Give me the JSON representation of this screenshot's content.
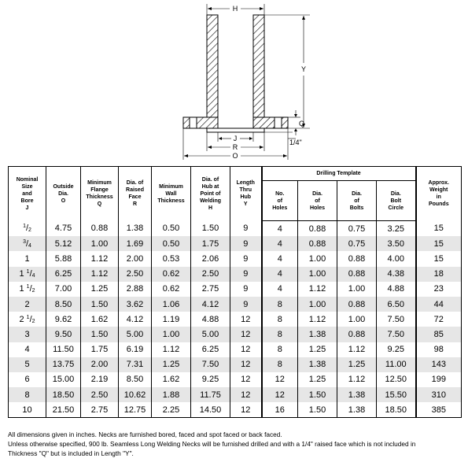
{
  "drawing": {
    "labels": {
      "h": "H",
      "y": "Y",
      "q": "Q",
      "quarter": "1/4\"",
      "j": "J",
      "r": "R",
      "o": "O"
    }
  },
  "table": {
    "drilling_title": "Drilling Template",
    "headers": [
      [
        "Nominal",
        "Size",
        "and",
        "Bore",
        "J"
      ],
      [
        "Outside",
        "Dia.",
        "O"
      ],
      [
        "Minimum",
        "Flange",
        "Thickness",
        "Q"
      ],
      [
        "Dia. of",
        "Raised",
        "Face",
        "R"
      ],
      [
        "Minimum",
        "Wall",
        "Thickness"
      ],
      [
        "Dia. of",
        "Hub at",
        "Point of",
        "Welding",
        "H"
      ],
      [
        "Length",
        "Thru",
        "Hub",
        "Y"
      ],
      [
        "No.",
        "of",
        "Holes"
      ],
      [
        "Dia.",
        "of",
        "Holes"
      ],
      [
        "Dia.",
        "of",
        "Bolts"
      ],
      [
        "Dia.",
        "Bolt",
        "Circle"
      ],
      [
        "Approx.",
        "Weight",
        "in",
        "Pounds"
      ]
    ],
    "rows": [
      {
        "size_whole": "",
        "size_num": "1",
        "size_den": "2",
        "cells": [
          "4.75",
          "0.88",
          "1.38",
          "0.50",
          "1.50",
          "9",
          "4",
          "0.88",
          "0.75",
          "3.25",
          "15"
        ]
      },
      {
        "size_whole": "",
        "size_num": "3",
        "size_den": "4",
        "cells": [
          "5.12",
          "1.00",
          "1.69",
          "0.50",
          "1.75",
          "9",
          "4",
          "0.88",
          "0.75",
          "3.50",
          "15"
        ]
      },
      {
        "size_whole": "1",
        "size_num": "",
        "size_den": "",
        "cells": [
          "5.88",
          "1.12",
          "2.00",
          "0.53",
          "2.06",
          "9",
          "4",
          "1.00",
          "0.88",
          "4.00",
          "15"
        ]
      },
      {
        "size_whole": "1",
        "size_num": "1",
        "size_den": "4",
        "cells": [
          "6.25",
          "1.12",
          "2.50",
          "0.62",
          "2.50",
          "9",
          "4",
          "1.00",
          "0.88",
          "4.38",
          "18"
        ]
      },
      {
        "size_whole": "1",
        "size_num": "1",
        "size_den": "2",
        "cells": [
          "7.00",
          "1.25",
          "2.88",
          "0.62",
          "2.75",
          "9",
          "4",
          "1.12",
          "1.00",
          "4.88",
          "23"
        ]
      },
      {
        "size_whole": "2",
        "size_num": "",
        "size_den": "",
        "cells": [
          "8.50",
          "1.50",
          "3.62",
          "1.06",
          "4.12",
          "9",
          "8",
          "1.00",
          "0.88",
          "6.50",
          "44"
        ]
      },
      {
        "size_whole": "2",
        "size_num": "1",
        "size_den": "2",
        "cells": [
          "9.62",
          "1.62",
          "4.12",
          "1.19",
          "4.88",
          "12",
          "8",
          "1.12",
          "1.00",
          "7.50",
          "72"
        ]
      },
      {
        "size_whole": "3",
        "size_num": "",
        "size_den": "",
        "cells": [
          "9.50",
          "1.50",
          "5.00",
          "1.00",
          "5.00",
          "12",
          "8",
          "1.38",
          "0.88",
          "7.50",
          "85"
        ]
      },
      {
        "size_whole": "4",
        "size_num": "",
        "size_den": "",
        "cells": [
          "11.50",
          "1.75",
          "6.19",
          "1.12",
          "6.25",
          "12",
          "8",
          "1.25",
          "1.12",
          "9.25",
          "98"
        ]
      },
      {
        "size_whole": "5",
        "size_num": "",
        "size_den": "",
        "cells": [
          "13.75",
          "2.00",
          "7.31",
          "1.25",
          "7.50",
          "12",
          "8",
          "1.38",
          "1.25",
          "11.00",
          "143"
        ]
      },
      {
        "size_whole": "6",
        "size_num": "",
        "size_den": "",
        "cells": [
          "15.00",
          "2.19",
          "8.50",
          "1.62",
          "9.25",
          "12",
          "12",
          "1.25",
          "1.12",
          "12.50",
          "199"
        ]
      },
      {
        "size_whole": "8",
        "size_num": "",
        "size_den": "",
        "cells": [
          "18.50",
          "2.50",
          "10.62",
          "1.88",
          "11.75",
          "12",
          "12",
          "1.50",
          "1.38",
          "15.50",
          "310"
        ]
      },
      {
        "size_whole": "10",
        "size_num": "",
        "size_den": "",
        "cells": [
          "21.50",
          "2.75",
          "12.75",
          "2.25",
          "14.50",
          "12",
          "16",
          "1.50",
          "1.38",
          "18.50",
          "385"
        ]
      }
    ]
  },
  "notes": [
    "All dimensions given in inches. Necks are furnished bored, faced and spot faced or back faced.",
    "Unless otherwise specified, 900 lb. Seamless Long Welding Necks will be furnished drilled and with a 1/4\" raised face which is not included in",
    "Thickness \"Q\" but is included in Length \"Y\"."
  ]
}
